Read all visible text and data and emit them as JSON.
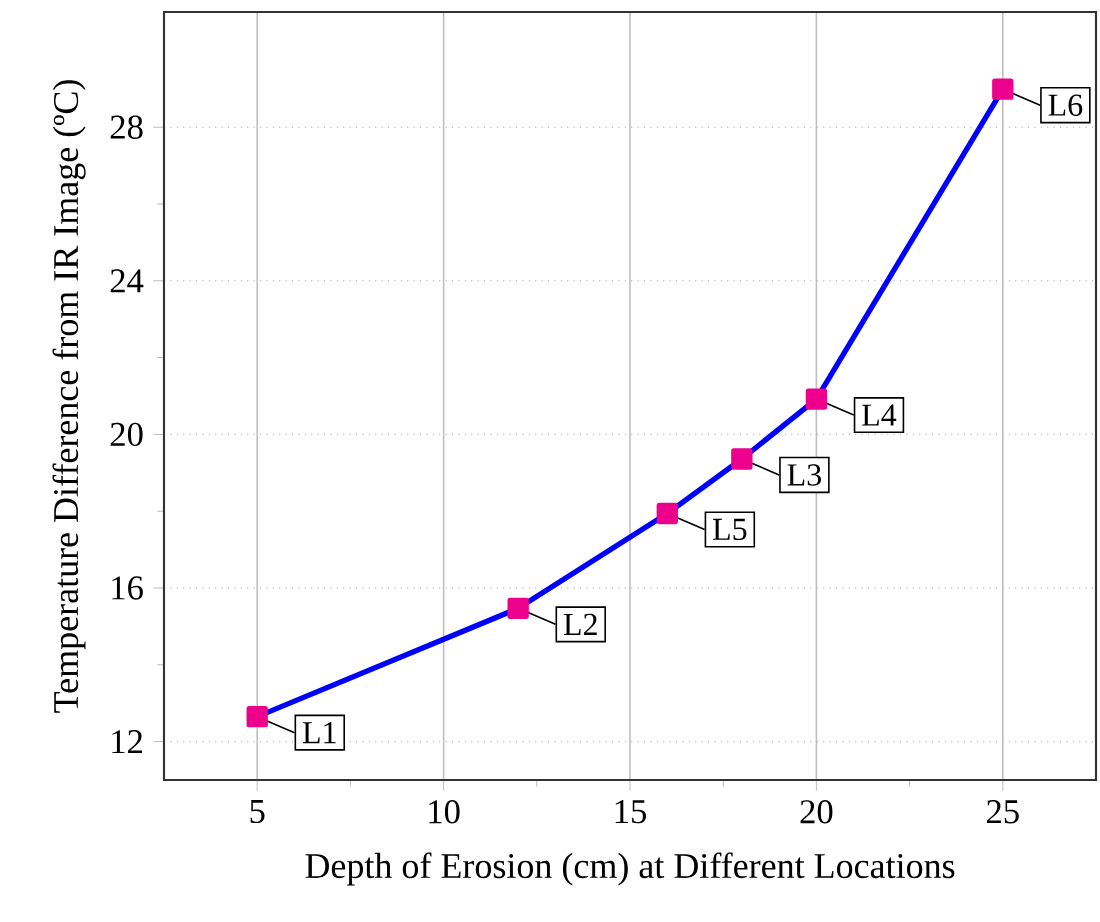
{
  "chart_data": {
    "type": "line",
    "xlabel": "Depth of Erosion (cm) at Different Locations",
    "ylabel": "Temperature Difference from IR Image (ºC)",
    "x": [
      5,
      12,
      16,
      18,
      20,
      25
    ],
    "series": [
      {
        "color": "#0000ff",
        "values": [
          12.65,
          15.47,
          17.94,
          19.36,
          20.92,
          28.99
        ]
      }
    ],
    "marker": "square",
    "line_style": "solid",
    "grid": true,
    "xlim": [
      2.5,
      27.5
    ],
    "xticks": [
      5,
      10,
      15,
      20,
      25
    ],
    "ylim": [
      11,
      31
    ],
    "yticks": [
      12,
      16,
      20,
      24,
      28
    ],
    "annotations": [
      {
        "text": "L1",
        "x": 5,
        "y": 12.65
      },
      {
        "text": "L2",
        "x": 12,
        "y": 15.47
      },
      {
        "text": "L5",
        "x": 16,
        "y": 17.94
      },
      {
        "text": "L3",
        "x": 18,
        "y": 19.36
      },
      {
        "text": "L4",
        "x": 20,
        "y": 20.92
      },
      {
        "text": "L6",
        "x": 25,
        "y": 28.99
      }
    ]
  }
}
